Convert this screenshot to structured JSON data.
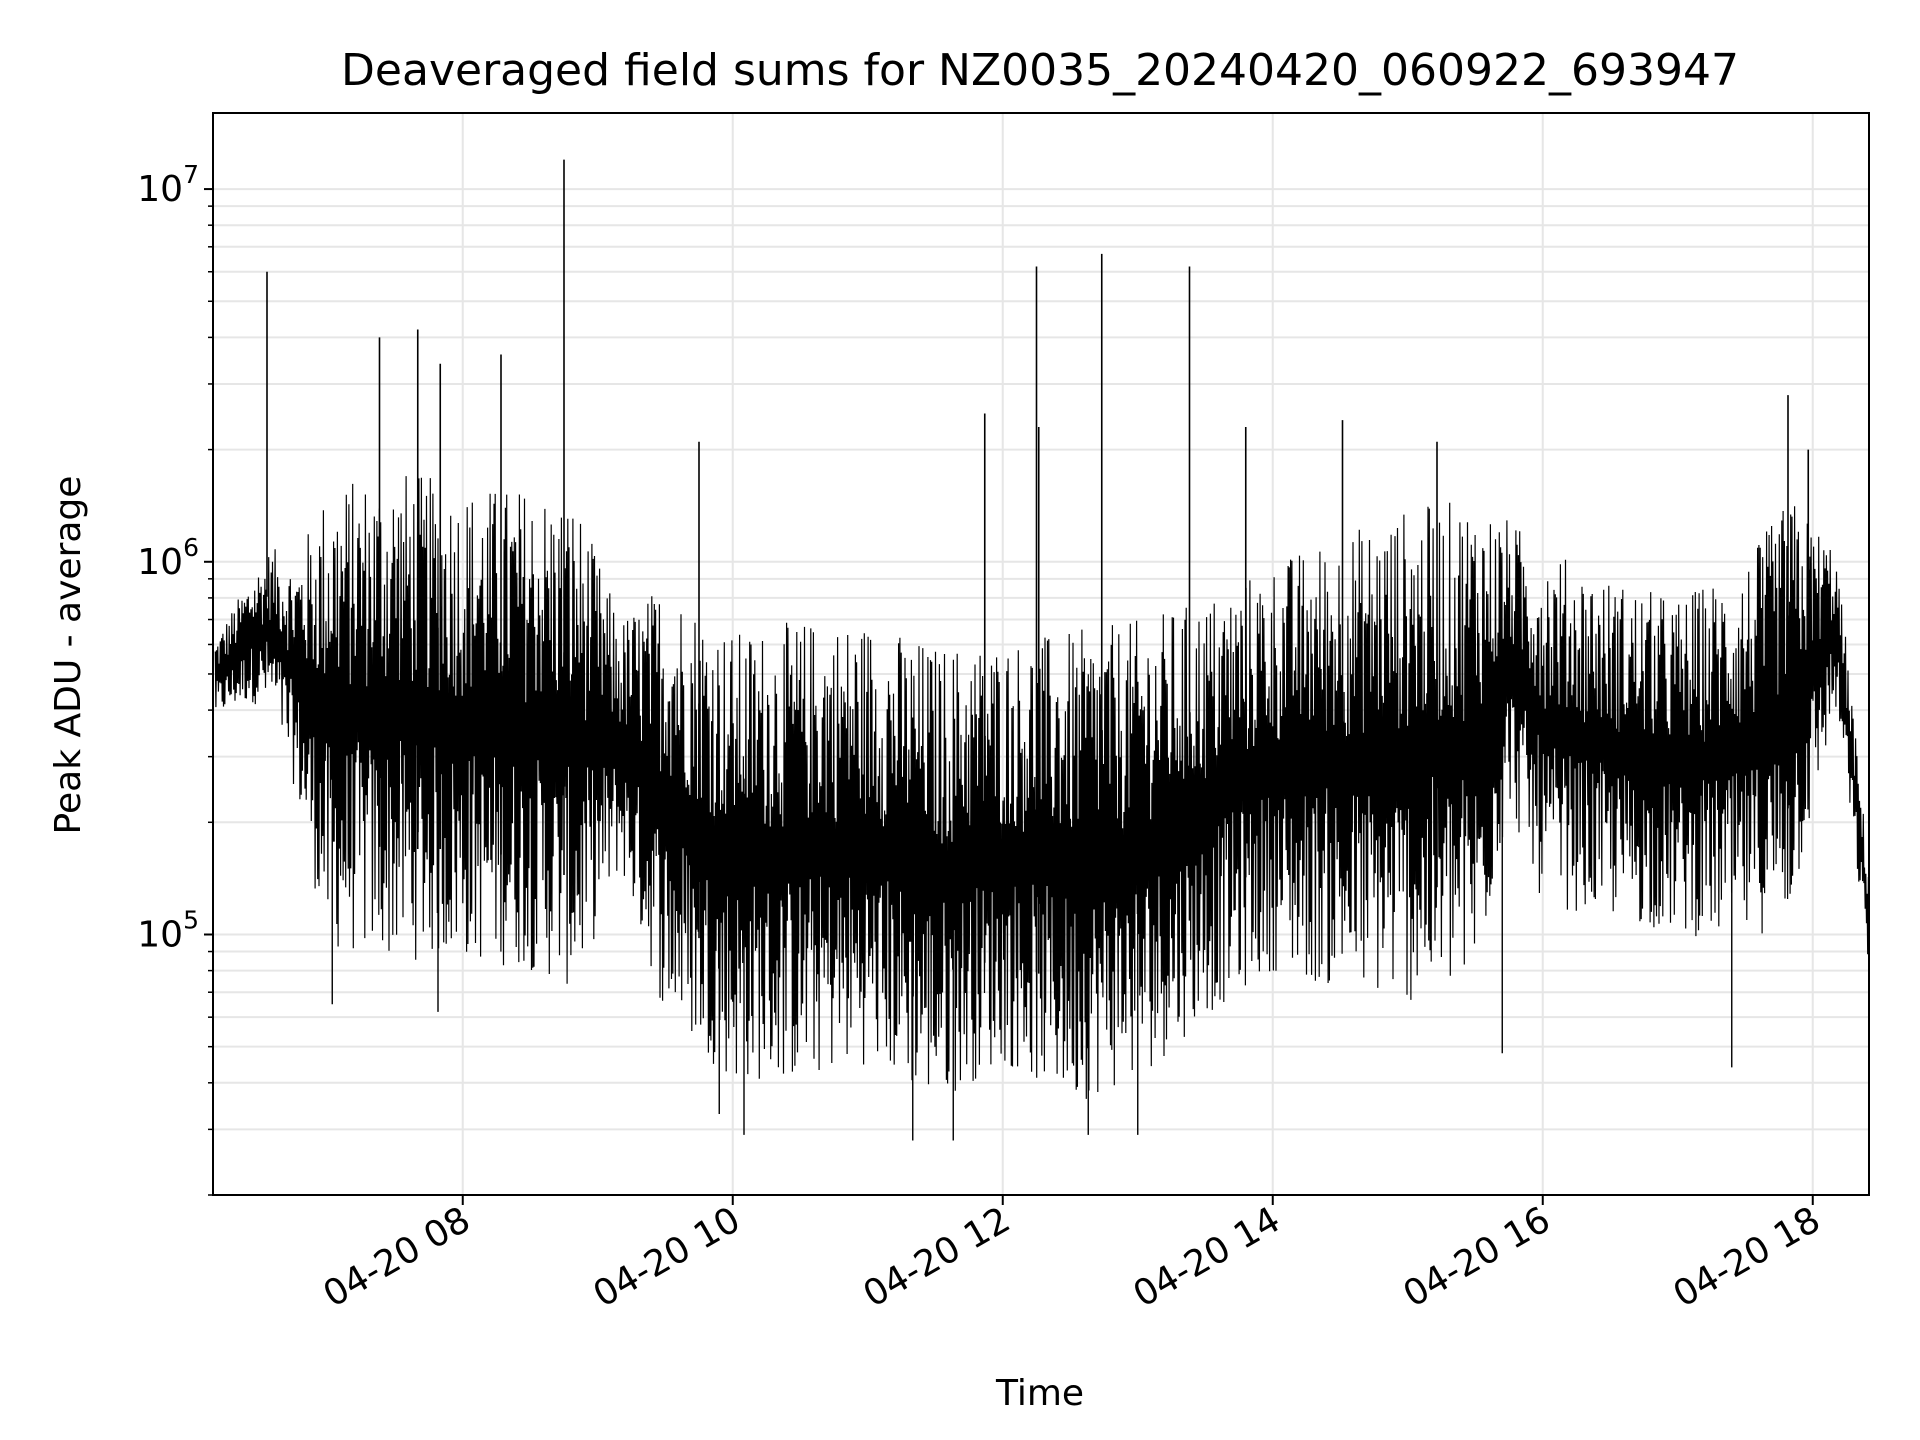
{
  "chart_data": {
    "type": "line",
    "title": "Deaveraged field sums for NZ0035_20240420_060922_693947",
    "xlabel": "Time",
    "ylabel": "Peak ADU - average",
    "yscale": "log",
    "xlim": [
      "2024-04-20 06:09",
      "2024-04-20 18:25"
    ],
    "ylim": [
      20000,
      16000000
    ],
    "grid": true,
    "line_color": "#000000",
    "x_ticks": [
      "04-20 08",
      "04-20 10",
      "04-20 12",
      "04-20 14",
      "04-20 16",
      "04-20 18"
    ],
    "x_tick_times": [
      "2024-04-20 08:00",
      "2024-04-20 10:00",
      "2024-04-20 12:00",
      "2024-04-20 14:00",
      "2024-04-20 16:00",
      "2024-04-20 18:00"
    ],
    "y_ticks": [
      {
        "value": 100000,
        "base": "10",
        "exp": "5"
      },
      {
        "value": 1000000,
        "base": "10",
        "exp": "6"
      },
      {
        "value": 10000000,
        "base": "10",
        "exp": "7"
      }
    ],
    "envelope": [
      {
        "t": "2024-04-20 06:10",
        "low": 380000,
        "high": 620000
      },
      {
        "t": "2024-04-20 06:25",
        "low": 420000,
        "high": 900000
      },
      {
        "t": "2024-04-20 06:35",
        "low": 400000,
        "high": 1100000
      },
      {
        "t": "2024-04-20 06:45",
        "low": 250000,
        "high": 1000000
      },
      {
        "t": "2024-04-20 07:00",
        "low": 90000,
        "high": 1600000
      },
      {
        "t": "2024-04-20 07:30",
        "low": 85000,
        "high": 1800000
      },
      {
        "t": "2024-04-20 08:00",
        "low": 85000,
        "high": 1600000
      },
      {
        "t": "2024-04-20 08:30",
        "low": 80000,
        "high": 1600000
      },
      {
        "t": "2024-04-20 08:50",
        "low": 70000,
        "high": 1500000
      },
      {
        "t": "2024-04-20 09:10",
        "low": 150000,
        "high": 700000
      },
      {
        "t": "2024-04-20 09:30",
        "low": 60000,
        "high": 900000
      },
      {
        "t": "2024-04-20 10:00",
        "low": 40000,
        "high": 650000
      },
      {
        "t": "2024-04-20 10:30",
        "low": 40000,
        "high": 700000
      },
      {
        "t": "2024-04-20 11:00",
        "low": 45000,
        "high": 700000
      },
      {
        "t": "2024-04-20 11:30",
        "low": 35000,
        "high": 600000
      },
      {
        "t": "2024-04-20 12:00",
        "low": 45000,
        "high": 620000
      },
      {
        "t": "2024-04-20 12:30",
        "low": 35000,
        "high": 650000
      },
      {
        "t": "2024-04-20 13:00",
        "low": 40000,
        "high": 700000
      },
      {
        "t": "2024-04-20 13:30",
        "low": 60000,
        "high": 800000
      },
      {
        "t": "2024-04-20 14:00",
        "low": 80000,
        "high": 1000000
      },
      {
        "t": "2024-04-20 14:30",
        "low": 70000,
        "high": 1200000
      },
      {
        "t": "2024-04-20 15:00",
        "low": 65000,
        "high": 1400000
      },
      {
        "t": "2024-04-20 15:30",
        "low": 70000,
        "high": 1500000
      },
      {
        "t": "2024-04-20 15:45",
        "low": 220000,
        "high": 1300000
      },
      {
        "t": "2024-04-20 16:00",
        "low": 120000,
        "high": 1100000
      },
      {
        "t": "2024-04-20 16:30",
        "low": 110000,
        "high": 900000
      },
      {
        "t": "2024-04-20 17:00",
        "low": 100000,
        "high": 800000
      },
      {
        "t": "2024-04-20 17:30",
        "low": 95000,
        "high": 1000000
      },
      {
        "t": "2024-04-20 17:50",
        "low": 110000,
        "high": 1500000
      },
      {
        "t": "2024-04-20 18:10",
        "low": 400000,
        "high": 1100000
      },
      {
        "t": "2024-04-20 18:15",
        "low": 250000,
        "high": 600000
      },
      {
        "t": "2024-04-20 18:25",
        "low": 80000,
        "high": 150000
      }
    ],
    "spikes": [
      {
        "t": "2024-04-20 06:33",
        "value": 6000000
      },
      {
        "t": "2024-04-20 07:23",
        "value": 4000000
      },
      {
        "t": "2024-04-20 07:40",
        "value": 4200000
      },
      {
        "t": "2024-04-20 07:50",
        "value": 3400000
      },
      {
        "t": "2024-04-20 08:17",
        "value": 3600000
      },
      {
        "t": "2024-04-20 08:45",
        "value": 12000000
      },
      {
        "t": "2024-04-20 09:45",
        "value": 2100000
      },
      {
        "t": "2024-04-20 11:52",
        "value": 2500000
      },
      {
        "t": "2024-04-20 12:15",
        "value": 6200000
      },
      {
        "t": "2024-04-20 12:16",
        "value": 2300000
      },
      {
        "t": "2024-04-20 12:44",
        "value": 6700000
      },
      {
        "t": "2024-04-20 13:23",
        "value": 6200000
      },
      {
        "t": "2024-04-20 13:48",
        "value": 2300000
      },
      {
        "t": "2024-04-20 14:31",
        "value": 2400000
      },
      {
        "t": "2024-04-20 15:13",
        "value": 2100000
      },
      {
        "t": "2024-04-20 17:49",
        "value": 2800000
      },
      {
        "t": "2024-04-20 17:58",
        "value": 2000000
      }
    ],
    "dips": [
      {
        "t": "2024-04-20 07:02",
        "value": 65000
      },
      {
        "t": "2024-04-20 07:49",
        "value": 62000
      },
      {
        "t": "2024-04-20 09:54",
        "value": 33000
      },
      {
        "t": "2024-04-20 10:05",
        "value": 29000
      },
      {
        "t": "2024-04-20 11:20",
        "value": 28000
      },
      {
        "t": "2024-04-20 11:38",
        "value": 28000
      },
      {
        "t": "2024-04-20 12:38",
        "value": 29000
      },
      {
        "t": "2024-04-20 13:00",
        "value": 29000
      },
      {
        "t": "2024-04-20 15:42",
        "value": 48000
      },
      {
        "t": "2024-04-20 17:24",
        "value": 44000
      }
    ]
  }
}
